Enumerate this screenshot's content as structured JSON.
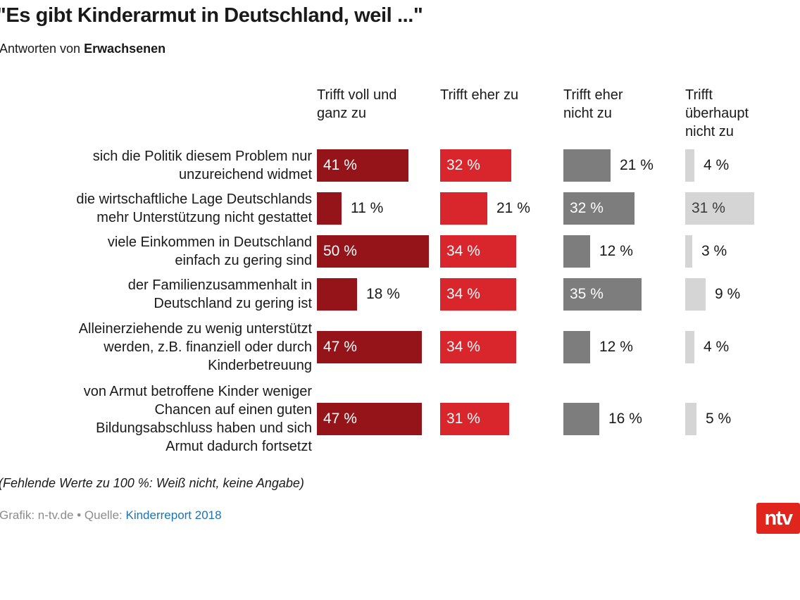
{
  "title": "\"Es gibt Kinderarmut in Deutschland, weil ...\"",
  "subtitle": {
    "prefix": "Antworten von ",
    "bold": "Erwachsenen"
  },
  "columns": [
    {
      "label": "Trifft voll und ganz zu",
      "color": "#951419"
    },
    {
      "label": "Trifft eher zu",
      "color": "#d8262c"
    },
    {
      "label": "Trifft eher nicht zu",
      "color": "#7d7d7d"
    },
    {
      "label": "Trifft überhaupt nicht zu",
      "color": "#d5d5d5"
    }
  ],
  "rows": [
    {
      "label": "sich die Politik diesem Problem nur unzureichend widmet",
      "label_lines": [
        "sich die Politik diesem Problem nur",
        "unzureichend widmet"
      ],
      "values": [
        41,
        32,
        21,
        4
      ]
    },
    {
      "label": "die wirtschaftliche Lage Deutschlands mehr Unterstützung nicht gestattet",
      "label_lines": [
        "die wirtschaftliche Lage Deutschlands",
        "mehr Unterstützung nicht gestattet"
      ],
      "values": [
        11,
        21,
        32,
        31
      ]
    },
    {
      "label": "viele Einkommen in Deutschland einfach zu gering sind",
      "label_lines": [
        "viele Einkommen in Deutschland",
        "einfach zu gering sind"
      ],
      "values": [
        50,
        34,
        12,
        3
      ]
    },
    {
      "label": "der Familienzusammenhalt in Deutschland zu gering ist",
      "label_lines": [
        "der Familienzusammenhalt in",
        "Deutschland zu gering ist"
      ],
      "values": [
        18,
        34,
        35,
        9
      ]
    },
    {
      "label": "Alleinerziehende zu wenig unterstützt werden, z.B. finanziell oder durch Kinderbetreuung",
      "label_lines": [
        "Alleinerziehende zu wenig unterstützt",
        "werden, z.B. finanziell oder durch",
        "Kinderbetreuung"
      ],
      "values": [
        47,
        34,
        12,
        4
      ]
    },
    {
      "label": "von Armut betroffene Kinder weniger Chancen auf einen guten Bildungsabschluss haben und sich Armut dadurch fortsetzt",
      "label_lines": [
        "von Armut betroffene Kinder weniger",
        "Chancen auf einen guten",
        "Bildungsabschluss haben und sich",
        "Armut dadurch fortsetzt"
      ],
      "values": [
        47,
        31,
        16,
        5
      ]
    }
  ],
  "value_suffix": " %",
  "footnote": "(Fehlende Werte zu 100 %: Weiß nicht, keine Angabe)",
  "credit": {
    "prefix": "Grafik: n-tv.de • Quelle: ",
    "link": "Kinderreport 2018"
  },
  "logo": "ntv",
  "chart_data": {
    "type": "bar",
    "orientation": "horizontal",
    "title": "\"Es gibt Kinderarmut in Deutschland, weil ...\"",
    "subtitle": "Antworten von Erwachsenen",
    "categories": [
      "sich die Politik diesem Problem nur unzureichend widmet",
      "die wirtschaftliche Lage Deutschlands mehr Unterstützung nicht gestattet",
      "viele Einkommen in Deutschland einfach zu gering sind",
      "der Familienzusammenhalt in Deutschland zu gering ist",
      "Alleinerziehende zu wenig unterstützt werden, z.B. finanziell oder durch Kinderbetreuung",
      "von Armut betroffene Kinder weniger Chancen auf einen guten Bildungsabschluss haben und sich Armut dadurch fortsetzt"
    ],
    "series": [
      {
        "name": "Trifft voll und ganz zu",
        "values": [
          41,
          11,
          50,
          18,
          47,
          47
        ],
        "color": "#951419"
      },
      {
        "name": "Trifft eher zu",
        "values": [
          32,
          21,
          34,
          34,
          34,
          31
        ],
        "color": "#d8262c"
      },
      {
        "name": "Trifft eher nicht zu",
        "values": [
          21,
          32,
          12,
          35,
          12,
          16
        ],
        "color": "#7d7d7d"
      },
      {
        "name": "Trifft überhaupt nicht zu",
        "values": [
          4,
          31,
          3,
          9,
          4,
          5
        ],
        "color": "#d5d5d5"
      }
    ],
    "unit": "%",
    "data_labels": true,
    "legend_position": "top-as-column-headers",
    "grid": false,
    "xlim": [
      0,
      50
    ],
    "footnote": "(Fehlende Werte zu 100 %: Weiß nicht, keine Angabe)",
    "source": "Kinderreport 2018"
  }
}
